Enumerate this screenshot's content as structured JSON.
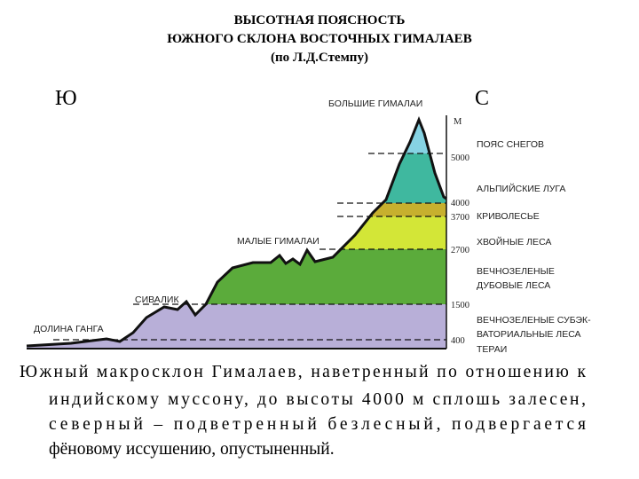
{
  "header": {
    "title_lines": [
      "ВЫСОТНАЯ ПОЯСНОСТЬ",
      "ЮЖНОГО СКЛОНА ВОСТОЧНЫХ ГИМАЛАЕВ",
      "(по Л.Д.Стемпу)"
    ]
  },
  "directions": {
    "south": "Ю",
    "north": "С"
  },
  "peaks": [
    "БОЛЬШИЕ ГИМАЛАИ",
    "МАЛЫЕ ГИМАЛАИ",
    "СИВАЛИК",
    "ДОЛИНА ГАНГА"
  ],
  "altitude_unit": "М",
  "altitudes": [
    "5000",
    "4000",
    "3700",
    "2700",
    "1500",
    "400"
  ],
  "zones": [
    {
      "lines": [
        "ПОЯС СНЕГОВ"
      ]
    },
    {
      "lines": [
        "АЛЬПИЙСКИЕ ЛУГА"
      ]
    },
    {
      "lines": [
        "КРИВОЛЕСЬЕ"
      ]
    },
    {
      "lines": [
        "ХВОЙНЫЕ ЛЕСА"
      ]
    },
    {
      "lines": [
        "ВЕЧНОЗЕЛЕНЫЕ",
        "ДУБОВЫЕ ЛЕСА"
      ]
    },
    {
      "lines": [
        "ВЕЧНОЗЕЛЕНЫЕ СУБЭК-",
        "ВАТОРИАЛЬНЫЕ ЛЕСА"
      ]
    },
    {
      "lines": [
        "ТЕРАИ"
      ]
    }
  ],
  "caption_lines": [
    "Южный макросклон Гималаев, наветренный по отношению к",
    "индийскому муссону, до высоты 4000 м сплошь залесен,",
    "северный – подветренный безлесный, подвергается",
    "фёновому иссушению, опустыненный."
  ]
}
